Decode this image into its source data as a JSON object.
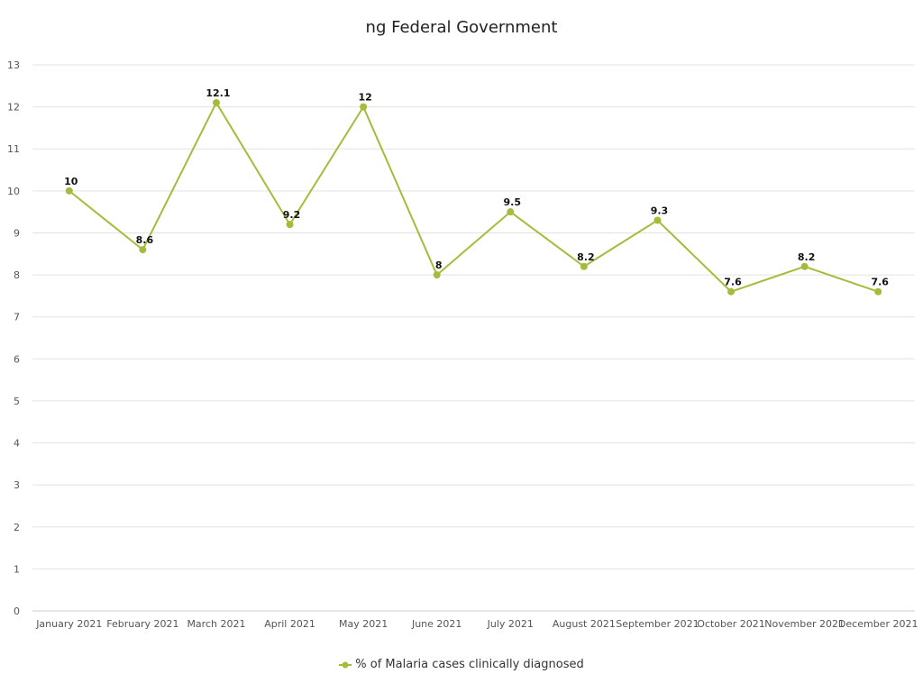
{
  "chart_data": {
    "type": "line",
    "title": "ng Federal Government",
    "xlabel": "",
    "ylabel": "",
    "categories": [
      "January 2021",
      "February 2021",
      "March 2021",
      "April 2021",
      "May 2021",
      "June 2021",
      "July 2021",
      "August 2021",
      "September 2021",
      "October 2021",
      "November 2021",
      "December 2021"
    ],
    "series": [
      {
        "name": "% of Malaria cases clinically diagnosed",
        "values": [
          10,
          8.6,
          12.1,
          9.2,
          12,
          8,
          9.5,
          8.2,
          9.3,
          7.6,
          8.2,
          7.6
        ],
        "color": "#a4bc3c"
      }
    ],
    "ylim": [
      0,
      13
    ],
    "yticks": [
      0,
      1,
      2,
      3,
      4,
      5,
      6,
      7,
      8,
      9,
      10,
      11,
      12,
      13
    ],
    "grid": true,
    "legend_position": "bottom",
    "data_labels": true
  }
}
